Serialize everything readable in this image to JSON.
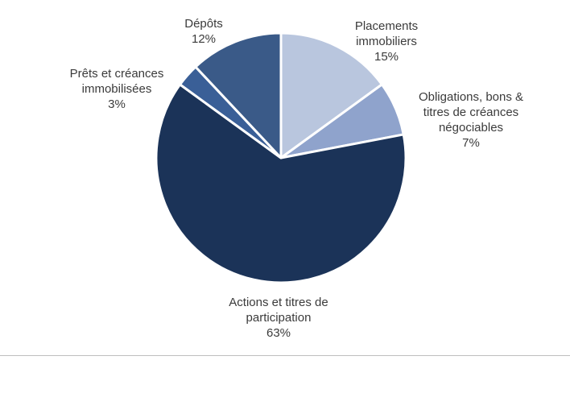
{
  "chart_data": {
    "type": "pie",
    "title": "",
    "slices": [
      {
        "lines": [
          "Placements",
          "immobiliers"
        ],
        "value": 15,
        "value_label": "15%",
        "color": "#b9c6de"
      },
      {
        "lines": [
          "Obligations, bons &",
          "titres de créances",
          "négociables"
        ],
        "value": 7,
        "value_label": "7%",
        "color": "#8fa3cc"
      },
      {
        "lines": [
          "Actions et titres de",
          "participation"
        ],
        "value": 63,
        "value_label": "63%",
        "color": "#1b3358"
      },
      {
        "lines": [
          "Prêts et créances",
          "immobilisées"
        ],
        "value": 3,
        "value_label": "3%",
        "color": "#3a5f97"
      },
      {
        "lines": [
          "Dépôts"
        ],
        "value": 12,
        "value_label": "12%",
        "color": "#3a5a88"
      }
    ]
  }
}
